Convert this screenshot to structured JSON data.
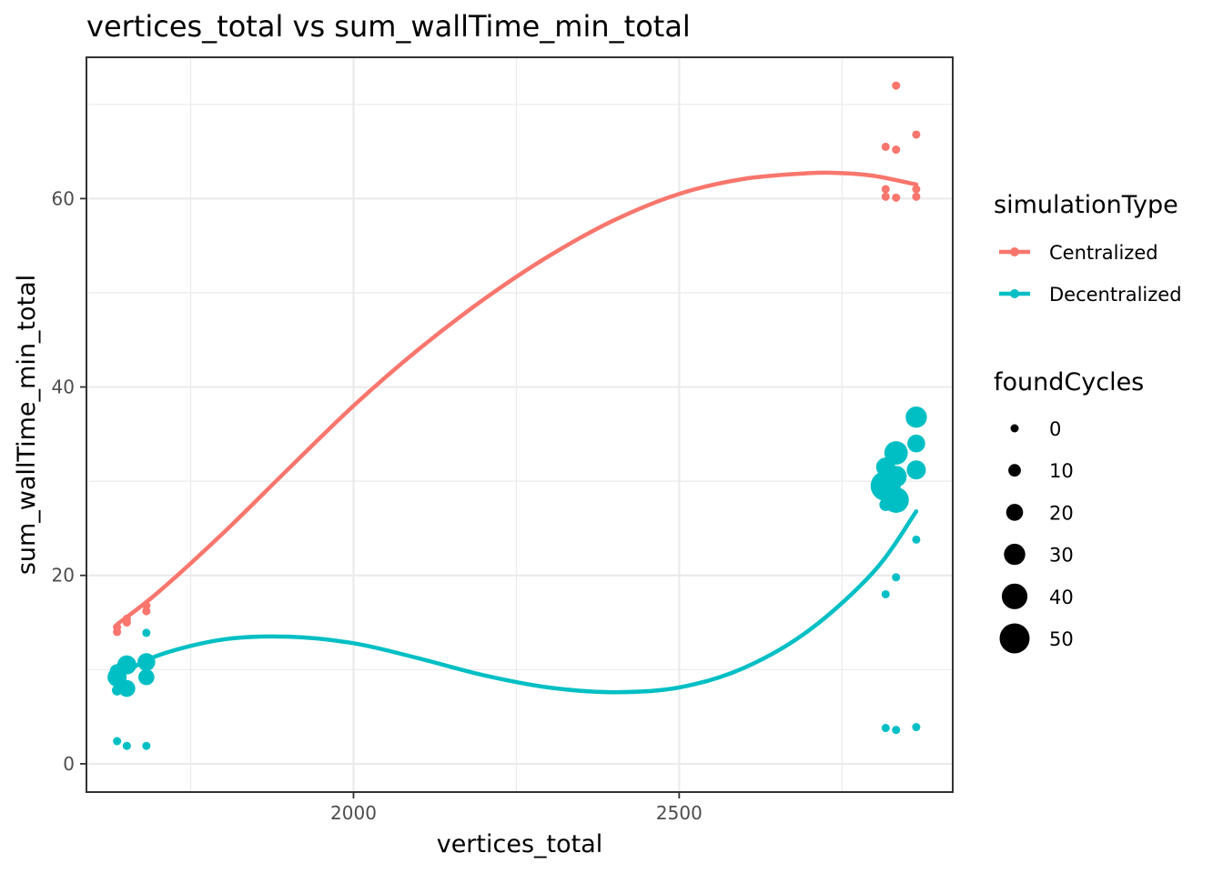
{
  "chart_data": {
    "type": "scatter",
    "title": "vertices_total  vs  sum_wallTime_min_total",
    "xlabel": "vertices_total",
    "ylabel": "sum_wallTime_min_total",
    "xlim": [
      1590,
      2920
    ],
    "ylim": [
      -3,
      75
    ],
    "x_ticks": [
      2000,
      2500
    ],
    "y_ticks": [
      0,
      20,
      40,
      60
    ],
    "grid": true,
    "legend_position": "right",
    "colors": {
      "Centralized": "#F8766D",
      "Decentralized": "#00BFC4"
    },
    "legends": {
      "color": {
        "title": "simulationType",
        "entries": [
          "Centralized",
          "Decentralized"
        ]
      },
      "size": {
        "title": "foundCycles",
        "entries": [
          0,
          10,
          20,
          30,
          40,
          50
        ]
      }
    },
    "series": [
      {
        "name": "Centralized",
        "points": [
          {
            "x": 1637,
            "y": 14.0,
            "size": 0
          },
          {
            "x": 1637,
            "y": 14.5,
            "size": 0
          },
          {
            "x": 1652,
            "y": 15.0,
            "size": 0
          },
          {
            "x": 1652,
            "y": 15.4,
            "size": 0
          },
          {
            "x": 1682,
            "y": 16.2,
            "size": 0
          },
          {
            "x": 1682,
            "y": 16.8,
            "size": 0
          },
          {
            "x": 2817,
            "y": 65.5,
            "size": 0
          },
          {
            "x": 2817,
            "y": 61.0,
            "size": 0
          },
          {
            "x": 2817,
            "y": 60.2,
            "size": 0
          },
          {
            "x": 2833,
            "y": 72.0,
            "size": 0
          },
          {
            "x": 2833,
            "y": 65.2,
            "size": 0
          },
          {
            "x": 2833,
            "y": 60.1,
            "size": 0
          },
          {
            "x": 2864,
            "y": 66.8,
            "size": 0
          },
          {
            "x": 2864,
            "y": 61.0,
            "size": 0
          },
          {
            "x": 2864,
            "y": 60.2,
            "size": 0
          }
        ],
        "smooth": [
          [
            1637,
            14.8
          ],
          [
            1700,
            18.2
          ],
          [
            1800,
            24.5
          ],
          [
            1900,
            31.3
          ],
          [
            2000,
            38.0
          ],
          [
            2100,
            44.0
          ],
          [
            2200,
            49.3
          ],
          [
            2300,
            53.9
          ],
          [
            2400,
            57.7
          ],
          [
            2500,
            60.5
          ],
          [
            2600,
            62.1
          ],
          [
            2700,
            62.7
          ],
          [
            2750,
            62.7
          ],
          [
            2800,
            62.4
          ],
          [
            2864,
            61.5
          ]
        ]
      },
      {
        "name": "Decentralized",
        "points": [
          {
            "x": 1637,
            "y": 2.4,
            "size": 0
          },
          {
            "x": 1637,
            "y": 7.8,
            "size": 5
          },
          {
            "x": 1637,
            "y": 9.2,
            "size": 25
          },
          {
            "x": 1637,
            "y": 9.8,
            "size": 15
          },
          {
            "x": 1652,
            "y": 1.9,
            "size": 0
          },
          {
            "x": 1652,
            "y": 8.0,
            "size": 20
          },
          {
            "x": 1652,
            "y": 10.5,
            "size": 25
          },
          {
            "x": 1682,
            "y": 1.9,
            "size": 0
          },
          {
            "x": 1682,
            "y": 9.2,
            "size": 18
          },
          {
            "x": 1682,
            "y": 10.8,
            "size": 22
          },
          {
            "x": 1682,
            "y": 13.9,
            "size": 0
          },
          {
            "x": 2817,
            "y": 3.8,
            "size": 0
          },
          {
            "x": 2817,
            "y": 18.0,
            "size": 0
          },
          {
            "x": 2817,
            "y": 27.5,
            "size": 10
          },
          {
            "x": 2817,
            "y": 29.5,
            "size": 50
          },
          {
            "x": 2817,
            "y": 31.5,
            "size": 25
          },
          {
            "x": 2833,
            "y": 3.6,
            "size": 0
          },
          {
            "x": 2833,
            "y": 19.8,
            "size": 0
          },
          {
            "x": 2833,
            "y": 28.0,
            "size": 40
          },
          {
            "x": 2833,
            "y": 30.5,
            "size": 30
          },
          {
            "x": 2833,
            "y": 33.0,
            "size": 35
          },
          {
            "x": 2864,
            "y": 3.9,
            "size": 0
          },
          {
            "x": 2864,
            "y": 23.8,
            "size": 0
          },
          {
            "x": 2864,
            "y": 31.2,
            "size": 25
          },
          {
            "x": 2864,
            "y": 34.0,
            "size": 22
          },
          {
            "x": 2864,
            "y": 36.8,
            "size": 30
          }
        ],
        "smooth": [
          [
            1637,
            9.2
          ],
          [
            1700,
            11.5
          ],
          [
            1800,
            13.2
          ],
          [
            1900,
            13.5
          ],
          [
            2000,
            12.8
          ],
          [
            2100,
            11.2
          ],
          [
            2200,
            9.4
          ],
          [
            2300,
            8.1
          ],
          [
            2400,
            7.6
          ],
          [
            2500,
            8.1
          ],
          [
            2600,
            10.2
          ],
          [
            2700,
            14.2
          ],
          [
            2800,
            20.5
          ],
          [
            2864,
            26.8
          ]
        ]
      }
    ]
  }
}
